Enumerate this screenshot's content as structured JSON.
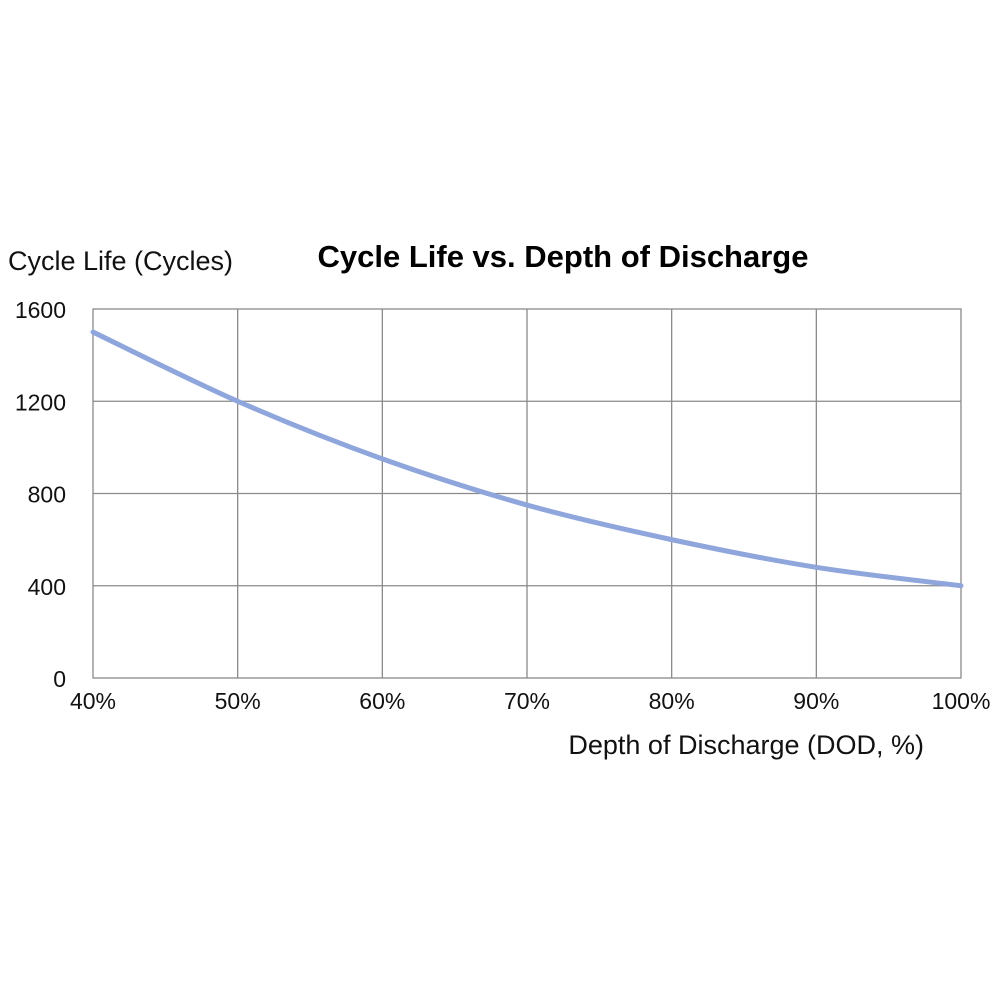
{
  "chart_data": {
    "type": "line",
    "title": "Cycle Life vs. Depth of Discharge",
    "xlabel": "Depth of Discharge (DOD, %)",
    "ylabel": "Cycle Life (Cycles)",
    "x_ticks": [
      "40%",
      "50%",
      "60%",
      "70%",
      "80%",
      "90%",
      "100%"
    ],
    "x_tick_values": [
      40,
      50,
      60,
      70,
      80,
      90,
      100
    ],
    "y_ticks": [
      "0",
      "400",
      "800",
      "1200",
      "1600"
    ],
    "y_tick_values": [
      0,
      400,
      800,
      1200,
      1600
    ],
    "xlim": [
      40,
      100
    ],
    "ylim": [
      0,
      1600
    ],
    "grid": true,
    "legend": false,
    "line_color": "#8fa6dc",
    "series": [
      {
        "x": [
          40,
          50,
          60,
          70,
          80,
          90,
          100
        ],
        "values": [
          1500,
          1200,
          950,
          750,
          600,
          480,
          400
        ]
      }
    ]
  }
}
